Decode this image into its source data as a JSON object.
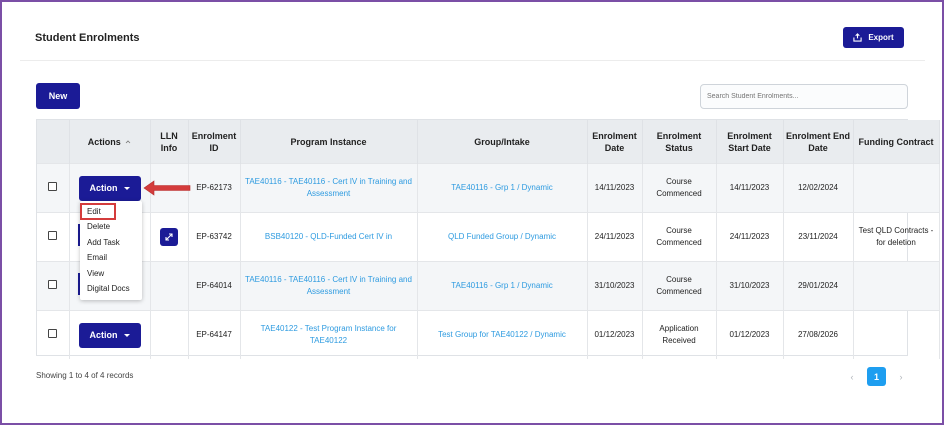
{
  "header": {
    "title": "Student Enrolments",
    "export_label": "Export"
  },
  "toolbar": {
    "new_label": "New",
    "search_placeholder": "Search Student Enrolments..."
  },
  "table": {
    "columns": [
      "",
      "Actions",
      "LLN Info",
      "Enrolment ID",
      "Program Instance",
      "Group/Intake",
      "Enrolment Date",
      "Enrolment Status",
      "Enrolment Start Date",
      "Enrolment End Date",
      "Funding Contract"
    ],
    "rows": [
      {
        "action": "Action",
        "id": "EP-62173",
        "program": "TAE40116 - TAE40116 - Cert IV in Training and Assessment",
        "group": "TAE40116 - Grp 1 / Dynamic",
        "enrol_date": "14/11/2023",
        "status": "Course Commenced",
        "start": "14/11/2023",
        "end": "12/02/2024",
        "funding": ""
      },
      {
        "action": "",
        "id": "EP-63742",
        "program": "BSB40120 - QLD-Funded Cert IV in",
        "group": "QLD Funded Group / Dynamic",
        "enrol_date": "24/11/2023",
        "status": "Course Commenced",
        "start": "24/11/2023",
        "end": "23/11/2024",
        "funding": "Test QLD Contracts - for deletion"
      },
      {
        "action": "",
        "id": "EP-64014",
        "program": "TAE40116 - TAE40116 - Cert IV in Training and Assessment",
        "group": "TAE40116 - Grp 1 / Dynamic",
        "enrol_date": "31/10/2023",
        "status": "Course Commenced",
        "start": "31/10/2023",
        "end": "29/01/2024",
        "funding": ""
      },
      {
        "action": "Action",
        "id": "EP-64147",
        "program": "TAE40122 - Test Program Instance for TAE40122",
        "group": "Test Group for TAE40122 / Dynamic",
        "enrol_date": "01/12/2023",
        "status": "Application Received",
        "start": "01/12/2023",
        "end": "27/08/2026",
        "funding": ""
      }
    ]
  },
  "menu": {
    "items": [
      "Edit",
      "Delete",
      "Add Task",
      "Email",
      "View",
      "Digital Docs"
    ]
  },
  "footer": {
    "showing": "Showing 1 to 4 of 4 records",
    "page": "1",
    "prev": "‹",
    "next": "›"
  },
  "colors": {
    "primary": "#1b1b96",
    "link": "#2e9be0",
    "pager_active": "#1e9ef0",
    "annotation": "#d43c3c",
    "frame": "#7b4fa6"
  },
  "icons": {
    "export": "export-icon",
    "expand": "expand-icon",
    "sort": "sort-icon",
    "annotation": "red-arrow-annotation"
  }
}
